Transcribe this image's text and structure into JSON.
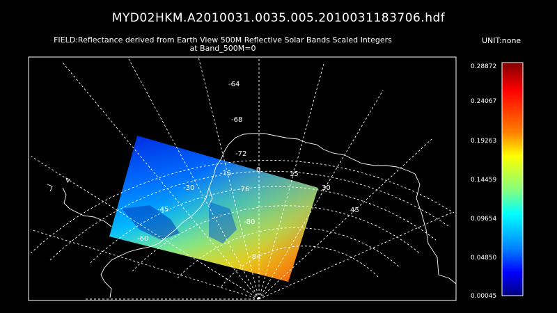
{
  "title": "MYD02HKM.A2010031.0035.005.2010031183706.hdf",
  "field_line1": "FIELD:Reflectance derived from Earth View 500M Reflective Solar Bands Scaled Integers",
  "field_line2": "at Band_500M=0",
  "unit": "UNIT:none",
  "colorbar": {
    "labels": [
      "0.28872",
      "0.24067",
      "0.19263",
      "0.14459",
      "0.09654",
      "0.04850",
      "0.00045"
    ],
    "colors": [
      "#800000",
      "#ff0000",
      "#ff8000",
      "#ffff00",
      "#80ff80",
      "#00ffff",
      "#0080ff",
      "#0000ff",
      "#000080"
    ]
  },
  "grid_labels": {
    "lat": [
      "-64",
      "-68",
      "-72",
      "-76",
      "-80",
      "-84"
    ],
    "lon": [
      "-60",
      "-45",
      "-30",
      "-15",
      "0",
      "15",
      "30",
      "45"
    ]
  }
}
